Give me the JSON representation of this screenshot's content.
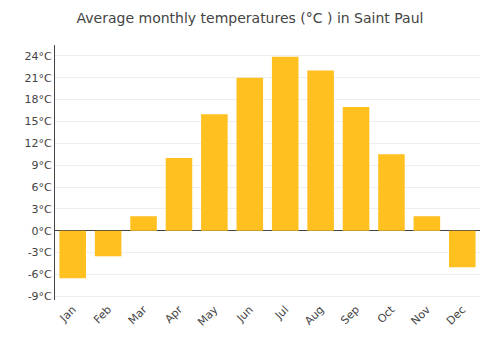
{
  "chart_data": {
    "type": "bar",
    "title": "Average monthly temperatures (°C ) in Saint Paul",
    "categories": [
      "Jan",
      "Feb",
      "Mar",
      "Apr",
      "May",
      "Jun",
      "Jul",
      "Aug",
      "Sep",
      "Oct",
      "Nov",
      "Dec"
    ],
    "values": [
      -6.5,
      -3.5,
      2.0,
      10.0,
      16.0,
      21.0,
      23.9,
      22.0,
      17.0,
      10.5,
      2.0,
      -5.0
    ],
    "color": "#FFC020",
    "ylim": [
      -9.5,
      25.5
    ],
    "yticks": [
      {
        "value": -9,
        "label": "-9°C"
      },
      {
        "value": -6,
        "label": "-6°C"
      },
      {
        "value": -3,
        "label": "-3°C"
      },
      {
        "value": 0,
        "label": "0°C"
      },
      {
        "value": 3,
        "label": "3°C"
      },
      {
        "value": 6,
        "label": "6°C"
      },
      {
        "value": 9,
        "label": "9°C"
      },
      {
        "value": 12,
        "label": "12°C"
      },
      {
        "value": 15,
        "label": "15°C"
      },
      {
        "value": 18,
        "label": "18°C"
      },
      {
        "value": 21,
        "label": "21°C"
      },
      {
        "value": 24,
        "label": "24°C"
      }
    ],
    "grid": true
  }
}
